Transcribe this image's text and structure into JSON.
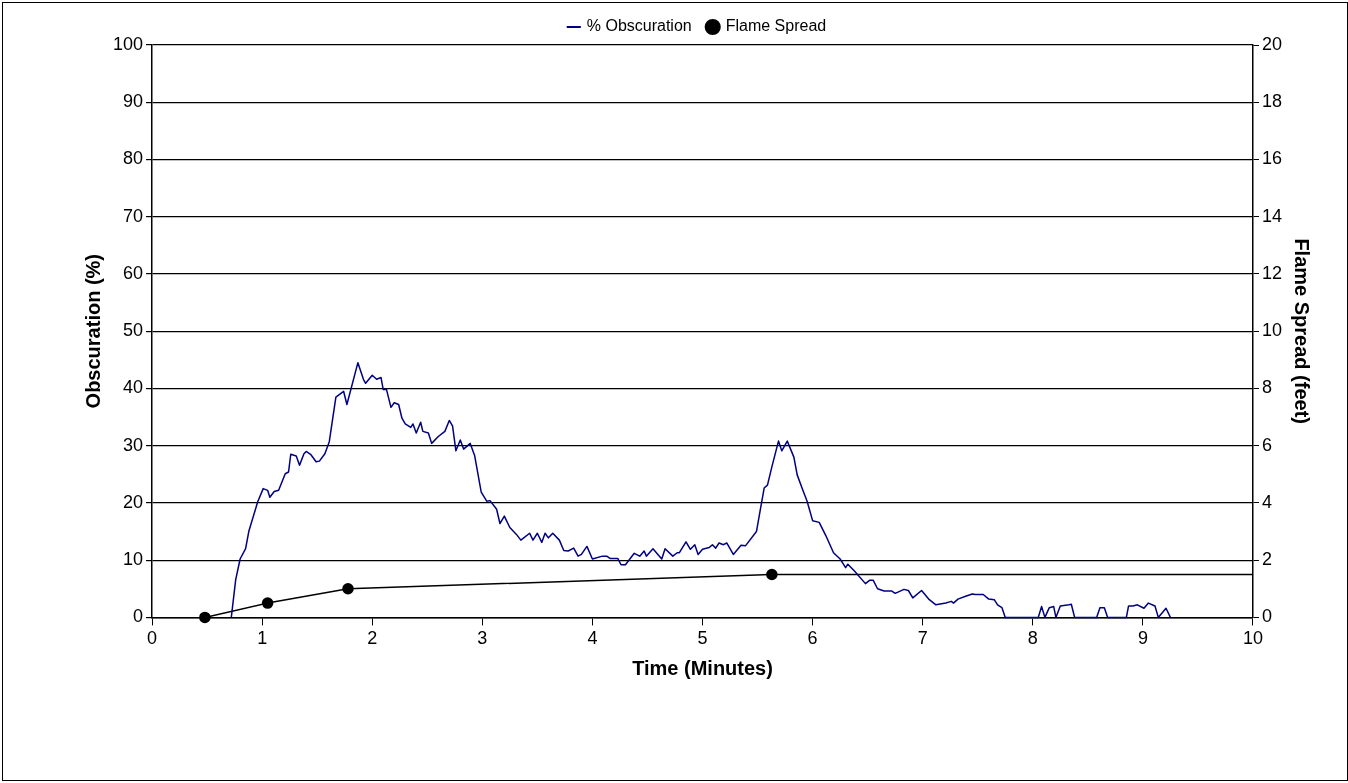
{
  "chart_data": {
    "type": "line",
    "xlabel": "Time (Minutes)",
    "ylabel": "Obscuration (%)",
    "y2label": "Flame Spread (feet)",
    "xlim": [
      0,
      10
    ],
    "xticks": [
      0,
      1,
      2,
      3,
      4,
      5,
      6,
      7,
      8,
      9,
      10
    ],
    "ylim": [
      0,
      100
    ],
    "yticks": [
      0,
      10,
      20,
      30,
      40,
      50,
      60,
      70,
      80,
      90,
      100
    ],
    "y2lim": [
      0,
      20
    ],
    "y2ticks": [
      0,
      2,
      4,
      6,
      8,
      10,
      12,
      14,
      16,
      18,
      20
    ],
    "grid": "y",
    "legend": "top",
    "line_style": "solid",
    "series": [
      {
        "name": "% Obscuration",
        "color": "#000080",
        "marker": "none",
        "x": [
          0.72,
          0.76,
          0.8,
          0.85,
          0.88,
          0.96,
          1.01,
          1.05,
          1.07,
          1.11,
          1.15,
          1.21,
          1.24,
          1.26,
          1.31,
          1.34,
          1.38,
          1.4,
          1.44,
          1.49,
          1.52,
          1.57,
          1.61,
          1.67,
          1.74,
          1.77,
          1.87,
          1.92,
          1.94,
          2.0,
          2.04,
          2.08,
          2.1,
          2.13,
          2.17,
          2.2,
          2.24,
          2.27,
          2.3,
          2.35,
          2.37,
          2.4,
          2.44,
          2.46,
          2.51,
          2.54,
          2.6,
          2.66,
          2.7,
          2.73,
          2.76,
          2.8,
          2.83,
          2.89,
          2.93,
          2.99,
          3.04,
          3.07,
          3.13,
          3.16,
          3.2,
          3.25,
          3.31,
          3.35,
          3.43,
          3.46,
          3.5,
          3.54,
          3.57,
          3.6,
          3.64,
          3.7,
          3.74,
          3.78,
          3.83,
          3.87,
          3.9,
          3.95,
          4.0,
          4.09,
          4.13,
          4.16,
          4.23,
          4.26,
          4.3,
          4.38,
          4.43,
          4.47,
          4.49,
          4.55,
          4.63,
          4.66,
          4.73,
          4.77,
          4.79,
          4.85,
          4.89,
          4.93,
          4.96,
          5.0,
          5.06,
          5.09,
          5.12,
          5.15,
          5.19,
          5.22,
          5.28,
          5.35,
          5.39,
          5.49,
          5.56,
          5.59,
          5.63,
          5.69,
          5.72,
          5.77,
          5.83,
          5.86,
          5.91,
          5.95,
          6.0,
          6.06,
          6.12,
          6.19,
          6.25,
          6.3,
          6.32,
          6.38,
          6.48,
          6.52,
          6.55,
          6.59,
          6.65,
          6.72,
          6.75,
          6.83,
          6.87,
          6.91,
          6.99,
          7.06,
          7.12,
          7.21,
          7.26,
          7.28,
          7.32,
          7.39,
          7.45,
          7.48,
          7.55,
          7.6,
          7.65,
          7.68,
          7.72,
          7.75,
          8.05,
          8.08,
          8.11,
          8.15,
          8.19,
          8.21,
          8.25,
          8.33,
          8.35,
          8.38,
          8.58,
          8.61,
          8.65,
          8.68,
          8.85,
          8.87,
          8.91,
          8.95,
          9.01,
          9.05,
          9.11,
          9.14,
          9.21,
          9.25
        ],
        "values": [
          0,
          6.6,
          10.2,
          12,
          15.1,
          20.2,
          22.5,
          22.2,
          21,
          22,
          22.2,
          25.1,
          25.4,
          28.5,
          28.2,
          26.6,
          28.6,
          29,
          28.5,
          27.2,
          27.3,
          28.6,
          30.7,
          38.5,
          39.5,
          37.2,
          44.5,
          41.6,
          40.9,
          42.3,
          41.6,
          41.9,
          39.8,
          39.8,
          36.7,
          37.5,
          37.2,
          34.8,
          33.8,
          33.2,
          33.8,
          32.2,
          34.1,
          32.5,
          32.2,
          30.4,
          31.6,
          32.5,
          34.4,
          33.4,
          29.1,
          31,
          29.4,
          30.4,
          28.3,
          21.9,
          20.3,
          20.4,
          18.9,
          16.4,
          17.7,
          15.7,
          14.5,
          13.5,
          14.7,
          13.5,
          14.7,
          13.1,
          14.7,
          13.9,
          14.7,
          13.5,
          11.7,
          11.6,
          12.1,
          10.7,
          11,
          12.4,
          10.2,
          10.7,
          10.7,
          10.3,
          10.3,
          9.2,
          9.2,
          11.2,
          10.7,
          11.6,
          10.7,
          12,
          10.2,
          12,
          10.7,
          11.3,
          11.3,
          13.2,
          11.9,
          12.7,
          11,
          11.9,
          12.2,
          12.7,
          12.1,
          13,
          12.7,
          13,
          11,
          12.6,
          12.5,
          15,
          22.6,
          23.1,
          26.3,
          30.8,
          29.1,
          30.8,
          28,
          24.9,
          22.3,
          20.3,
          16.9,
          16.6,
          14.3,
          11.3,
          10.2,
          8.7,
          9.3,
          8.1,
          5.9,
          6.5,
          6.5,
          5,
          4.6,
          4.6,
          4.2,
          4.9,
          4.7,
          3.4,
          4.7,
          3.1,
          2.2,
          2.5,
          2.8,
          2.5,
          3.2,
          3.7,
          4.1,
          4,
          4,
          3.2,
          3.1,
          2.2,
          1.7,
          0,
          0,
          1.9,
          0,
          1.7,
          1.9,
          0,
          2,
          2.2,
          2.3,
          0,
          0,
          1.7,
          1.7,
          0,
          0,
          2,
          2,
          2.2,
          1.6,
          2.5,
          2,
          0,
          1.6,
          0
        ]
      },
      {
        "name": "Flame Spread",
        "color": "#000000",
        "marker": "circle",
        "axis": "y2",
        "x": [
          0.48,
          1.05,
          1.78,
          5.63,
          10
        ],
        "values": [
          0,
          0.5,
          1.0,
          1.5,
          1.5
        ]
      }
    ]
  }
}
